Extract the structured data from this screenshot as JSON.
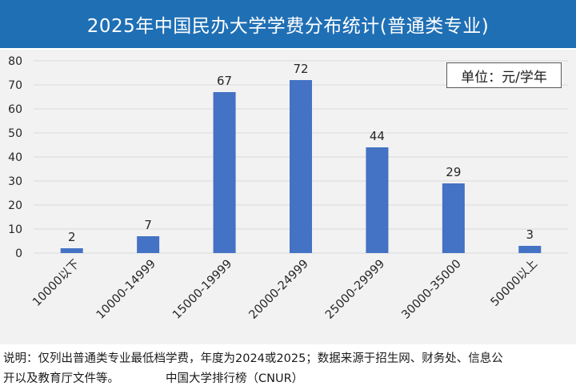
{
  "header": {
    "title": "2025年中国民办大学学费分布统计(普通类专业)"
  },
  "unit_label": "单位：元/学年",
  "footnote": {
    "line1": "说明：仅列出普通类专业最低档学费，年度为2024或2025；数据来源于招生网、财务处、信息公",
    "line2": "开以及教育厅文件等。",
    "source": "中国大学排行榜（CNUR）"
  },
  "colors": {
    "bar": "#4472c4",
    "title_bg": "#1f6fb5",
    "plot_bg": "#f2f2f2",
    "grid": "#d9d9d9"
  },
  "chart_data": {
    "type": "bar",
    "title": "2025年中国民办大学学费分布统计(普通类专业)",
    "xlabel": "",
    "ylabel": "",
    "categories": [
      "10000以下",
      "10000-14999",
      "15000-19999",
      "20000-24999",
      "25000-29999",
      "30000-35000",
      "50000以上"
    ],
    "values": [
      2,
      7,
      67,
      72,
      44,
      29,
      3
    ],
    "ylim": [
      0,
      80
    ],
    "yticks": [
      0,
      10,
      20,
      30,
      40,
      50,
      60,
      70,
      80
    ],
    "grid": true,
    "data_labels": true
  }
}
